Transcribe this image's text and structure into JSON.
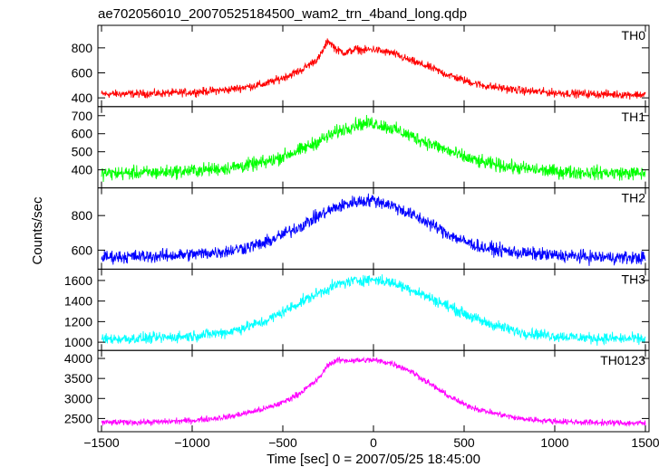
{
  "chart_data": {
    "type": "line",
    "title": "ae702056010_20070525184500_wam2_trn_4band_long.qdp",
    "xlabel": "Time [sec] 0 = 2007/05/25 18:45:00",
    "ylabel": "Counts/sec",
    "xlim": [
      -1520,
      1520
    ],
    "x_ticks": [
      -1500,
      -1000,
      -500,
      0,
      500,
      1000,
      1500
    ],
    "x_tick_labels": [
      "−1500",
      "−1000",
      "−500",
      "0",
      "500",
      "1000",
      "1500"
    ],
    "panels": [
      {
        "name": "TH0",
        "color": "#ff0000",
        "ylim": [
          330,
          980
        ],
        "y_ticks": [
          400,
          600,
          800
        ],
        "series": {
          "x": [
            -1500,
            -1200,
            -1000,
            -800,
            -600,
            -500,
            -400,
            -300,
            -250,
            -200,
            -150,
            -100,
            -50,
            0,
            50,
            100,
            200,
            300,
            400,
            500,
            600,
            800,
            1000,
            1200,
            1500
          ],
          "values": [
            430,
            435,
            445,
            465,
            510,
            560,
            620,
            720,
            860,
            780,
            760,
            790,
            780,
            790,
            770,
            760,
            700,
            650,
            590,
            540,
            500,
            460,
            440,
            430,
            425
          ]
        },
        "noise": 30
      },
      {
        "name": "TH1",
        "color": "#00ff00",
        "ylim": [
          300,
          750
        ],
        "y_ticks": [
          400,
          500,
          600,
          700
        ],
        "series": {
          "x": [
            -1500,
            -1200,
            -1000,
            -800,
            -600,
            -400,
            -300,
            -200,
            -100,
            0,
            100,
            200,
            300,
            400,
            500,
            600,
            800,
            1000,
            1200,
            1500
          ],
          "values": [
            380,
            385,
            395,
            410,
            440,
            510,
            560,
            610,
            650,
            660,
            630,
            590,
            550,
            510,
            470,
            440,
            410,
            390,
            385,
            380
          ]
        },
        "noise": 35
      },
      {
        "name": "TH2",
        "color": "#0000ff",
        "ylim": [
          490,
          960
        ],
        "y_ticks": [
          600,
          800
        ],
        "series": {
          "x": [
            -1500,
            -1200,
            -1000,
            -800,
            -600,
            -400,
            -300,
            -200,
            -100,
            0,
            100,
            200,
            300,
            400,
            500,
            600,
            800,
            1000,
            1200,
            1500
          ],
          "values": [
            560,
            565,
            575,
            595,
            640,
            740,
            800,
            850,
            880,
            890,
            860,
            810,
            760,
            700,
            650,
            615,
            585,
            570,
            560,
            555
          ]
        },
        "noise": 35
      },
      {
        "name": "TH3",
        "color": "#00ffff",
        "ylim": [
          920,
          1710
        ],
        "y_ticks": [
          1000,
          1200,
          1400,
          1600
        ],
        "series": {
          "x": [
            -1500,
            -1200,
            -1000,
            -800,
            -600,
            -400,
            -300,
            -200,
            -100,
            0,
            100,
            200,
            300,
            400,
            500,
            600,
            800,
            1000,
            1200,
            1500
          ],
          "values": [
            1030,
            1040,
            1060,
            1100,
            1200,
            1390,
            1480,
            1560,
            1600,
            1610,
            1580,
            1520,
            1440,
            1360,
            1280,
            1200,
            1100,
            1060,
            1040,
            1030
          ]
        },
        "noise": 50
      },
      {
        "name": "TH0123",
        "color": "#ff00ff",
        "ylim": [
          2170,
          4200
        ],
        "y_ticks": [
          2500,
          3000,
          3500,
          4000
        ],
        "series": {
          "x": [
            -1500,
            -1200,
            -1000,
            -800,
            -600,
            -500,
            -400,
            -300,
            -250,
            -200,
            -100,
            0,
            100,
            200,
            300,
            400,
            500,
            600,
            800,
            1000,
            1200,
            1500
          ],
          "values": [
            2400,
            2410,
            2450,
            2540,
            2740,
            2900,
            3150,
            3500,
            3850,
            3950,
            3950,
            3960,
            3880,
            3700,
            3400,
            3100,
            2850,
            2700,
            2500,
            2430,
            2400,
            2380
          ]
        },
        "noise": 70
      }
    ]
  }
}
